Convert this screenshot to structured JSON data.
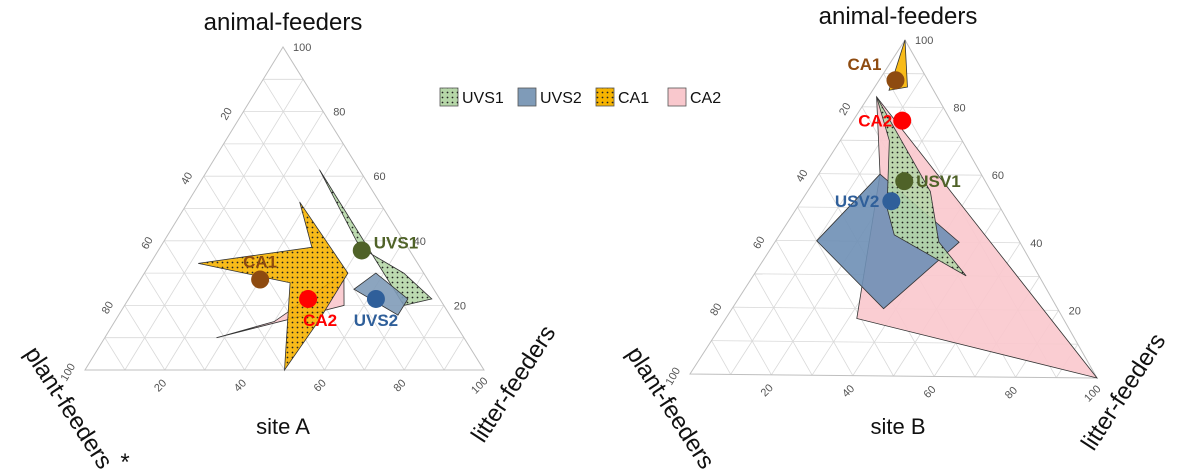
{
  "chart_data": [
    {
      "type": "ternary",
      "title": "site A",
      "corners": {
        "top": "animal-feeders",
        "left": "plant-feeders",
        "right": "litter-feeders"
      },
      "left_marker": "*",
      "ticks": [
        20,
        40,
        60,
        80,
        100
      ],
      "grid": true,
      "series": [
        {
          "name": "CA2",
          "fill": "#f9c8cd",
          "pattern": "none",
          "polygon": [
            [
              0,
              0,
              0,
              0,
              100,
              0
            ],
            [
              30,
              50,
              20
            ],
            [
              15,
              40,
              45
            ],
            [
              10,
              28,
              62
            ],
            [
              20,
              55,
              25
            ]
          ],
          "polygon_labels": "animal, litter, plant"
        },
        {
          "name": "CA1",
          "fill": "#f7b400",
          "pattern": "dots",
          "polygon": [
            [
              38,
              38,
              24
            ],
            [
              52,
              28,
              20
            ],
            [
              30,
              51,
              19
            ],
            [
              15,
              51,
              34
            ],
            [
              0,
              50,
              50
            ],
            [
              27,
              38,
              35
            ],
            [
              33,
              12,
              55
            ],
            [
              38,
              38,
              24
            ]
          ]
        },
        {
          "name": "UVS1",
          "fill": "#b6d7a8",
          "pattern": "dots",
          "polygon": [
            [
              62,
              28,
              10
            ],
            [
              36,
              54,
              10
            ],
            [
              20,
              70,
              10
            ],
            [
              22,
              76,
              2
            ],
            [
              30,
              65,
              5
            ],
            [
              38,
              50,
              12
            ],
            [
              62,
              28,
              10
            ]
          ]
        },
        {
          "name": "UVS2",
          "fill": "#7f9bb8",
          "pattern": "none",
          "polygon": [
            [
              30,
              58,
              12
            ],
            [
              22,
              70,
              8
            ],
            [
              17,
              70,
              13
            ],
            [
              25,
              55,
              20
            ],
            [
              30,
              58,
              12
            ]
          ]
        }
      ],
      "points": [
        {
          "label": "CA1",
          "animal": 28,
          "litter": 30,
          "plant": 42,
          "color": "#8e4b10"
        },
        {
          "label": "CA2",
          "animal": 22,
          "litter": 45,
          "plant": 33,
          "color": "#ff0000"
        },
        {
          "label": "UVS1",
          "animal": 37,
          "litter": 51,
          "plant": 12,
          "color": "#4f6228"
        },
        {
          "label": "UVS2",
          "animal": 22,
          "litter": 62,
          "plant": 16,
          "color": "#2f5f9a"
        }
      ]
    },
    {
      "type": "ternary",
      "title": "site B",
      "corners": {
        "top": "animal-feeders",
        "left": "plant-feeders",
        "right": "litter-feeders"
      },
      "ticks": [
        20,
        40,
        60,
        80,
        100
      ],
      "grid": true,
      "series": [
        {
          "name": "CA2",
          "fill": "#f9c8cd",
          "pattern": "none",
          "polygon": [
            [
              83,
              2,
              15
            ],
            [
              60,
              15,
              25
            ],
            [
              60,
              15,
              25
            ],
            [
              17,
              32,
              51
            ],
            [
              0,
              100,
              0
            ],
            [
              83,
              2,
              15
            ]
          ]
        },
        {
          "name": "UVS2",
          "fill": "#6e8fb5",
          "pattern": "none",
          "polygon": [
            [
              60,
              15,
              25
            ],
            [
              40,
              10,
              50
            ],
            [
              20,
              37,
              43
            ],
            [
              40,
              45,
              15
            ],
            [
              60,
              15,
              25
            ]
          ]
        },
        {
          "name": "UVS1",
          "fill": "#b6d7a8",
          "pattern": "dots",
          "polygon": [
            [
              83,
              2,
              15
            ],
            [
              70,
              12,
              18
            ],
            [
              50,
              22,
              28
            ],
            [
              42,
              28,
              30
            ],
            [
              30,
              52,
              18
            ],
            [
              40,
              40,
              20
            ],
            [
              55,
              30,
              15
            ],
            [
              83,
              2,
              15
            ]
          ]
        },
        {
          "name": "CA1",
          "fill": "#f7b400",
          "pattern": "none",
          "polygon": [
            [
              100,
              0,
              0
            ],
            [
              86,
              8,
              6
            ],
            [
              85,
              4,
              11
            ],
            [
              100,
              0,
              0
            ]
          ]
        }
      ],
      "points": [
        {
          "label": "CA1",
          "animal": 88,
          "litter": 4,
          "plant": 8,
          "color": "#8e4b10"
        },
        {
          "label": "CA2",
          "animal": 76,
          "litter": 12,
          "plant": 12,
          "color": "#ff0000"
        },
        {
          "label": "USV1",
          "animal": 58,
          "litter": 22,
          "plant": 20,
          "color": "#4f6228"
        },
        {
          "label": "USV2",
          "animal": 52,
          "litter": 22,
          "plant": 26,
          "color": "#2f5f9a"
        }
      ]
    }
  ],
  "legend": {
    "placement": "top-center",
    "items": [
      {
        "label": "UVS1",
        "fill": "#b6d7a8",
        "pattern": "dots"
      },
      {
        "label": "UVS2",
        "fill": "#7f9bb8",
        "pattern": "none"
      },
      {
        "label": "CA1",
        "fill": "#f7b400",
        "pattern": "dots"
      },
      {
        "label": "CA2",
        "fill": "#f9c8cd",
        "pattern": "none"
      }
    ]
  }
}
